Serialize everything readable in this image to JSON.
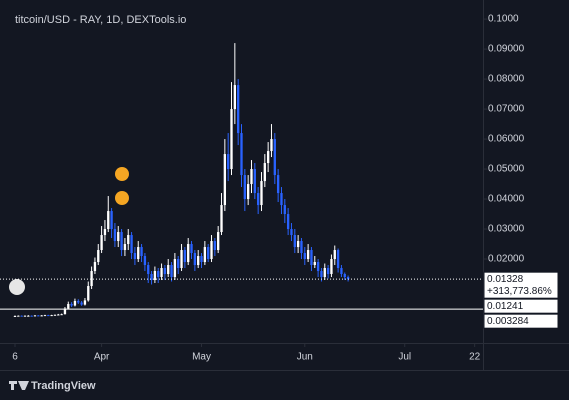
{
  "chart_data": {
    "type": "candlestick",
    "title": "titcoin/USD - RAY, 1D, DEXTools.io",
    "brand": "TradingView",
    "up_color": "#ffffff",
    "down_color": "#2962ff",
    "xlim": [
      -4.5,
      140.5
    ],
    "ylim": [
      -0.008,
      0.1047
    ],
    "xticks": [
      {
        "value": 0,
        "label": "6"
      },
      {
        "value": 26,
        "label": "Apr"
      },
      {
        "value": 56,
        "label": "May"
      },
      {
        "value": 87,
        "label": "Jun"
      },
      {
        "value": 117,
        "label": "Jul"
      },
      {
        "value": 138,
        "label": "22"
      }
    ],
    "yticks": [
      {
        "value": 0.02,
        "label": "0.02000"
      },
      {
        "value": 0.03,
        "label": "0.03000"
      },
      {
        "value": 0.04,
        "label": "0.04000"
      },
      {
        "value": 0.05,
        "label": "0.05000"
      },
      {
        "value": 0.06,
        "label": "0.06000"
      },
      {
        "value": 0.07,
        "label": "0.07000"
      },
      {
        "value": 0.08,
        "label": "0.08000"
      },
      {
        "value": 0.09,
        "label": "0.09000"
      },
      {
        "value": 0.1,
        "label": "0.1000"
      }
    ],
    "x": [
      0,
      1,
      2,
      3,
      4,
      5,
      6,
      7,
      8,
      9,
      10,
      11,
      12,
      13,
      14,
      15,
      16,
      17,
      18,
      19,
      20,
      21,
      22,
      23,
      24,
      25,
      26,
      27,
      28,
      29,
      30,
      31,
      32,
      33,
      34,
      35,
      36,
      37,
      38,
      39,
      40,
      41,
      42,
      43,
      44,
      45,
      46,
      47,
      48,
      49,
      50,
      51,
      52,
      53,
      54,
      55,
      56,
      57,
      58,
      59,
      60,
      61,
      62,
      63,
      64,
      65,
      66,
      67,
      68,
      69,
      70,
      71,
      72,
      73,
      74,
      75,
      76,
      77,
      78,
      79,
      80,
      81,
      82,
      83,
      84,
      85,
      86,
      87,
      88,
      89,
      90,
      91,
      92,
      93,
      94,
      95,
      96,
      97,
      98,
      99,
      100
    ],
    "open": [
      0.001,
      0.001,
      0.0011,
      0.001,
      0.0011,
      0.0011,
      0.001,
      0.0012,
      0.0011,
      0.0012,
      0.0013,
      0.0012,
      0.0013,
      0.0014,
      0.0015,
      0.0016,
      0.0035,
      0.005,
      0.0045,
      0.006,
      0.0055,
      0.0048,
      0.0062,
      0.011,
      0.016,
      0.019,
      0.023,
      0.028,
      0.03,
      0.036,
      0.03,
      0.026,
      0.029,
      0.023,
      0.025,
      0.028,
      0.022,
      0.02,
      0.024,
      0.021,
      0.018,
      0.015,
      0.013,
      0.016,
      0.014,
      0.017,
      0.015,
      0.018,
      0.014,
      0.02,
      0.017,
      0.023,
      0.019,
      0.025,
      0.022,
      0.018,
      0.021,
      0.019,
      0.024,
      0.02,
      0.026,
      0.023,
      0.029,
      0.038,
      0.055,
      0.05,
      0.07,
      0.078,
      0.062,
      0.048,
      0.04,
      0.045,
      0.05,
      0.042,
      0.038,
      0.046,
      0.052,
      0.056,
      0.06,
      0.048,
      0.042,
      0.038,
      0.035,
      0.03,
      0.028,
      0.024,
      0.026,
      0.022,
      0.02,
      0.023,
      0.018,
      0.019,
      0.016,
      0.014,
      0.017,
      0.015,
      0.02,
      0.023,
      0.017,
      0.015,
      0.014
    ],
    "high": [
      0.0012,
      0.0012,
      0.0012,
      0.0012,
      0.0013,
      0.0012,
      0.0013,
      0.0013,
      0.0013,
      0.0014,
      0.0014,
      0.0014,
      0.0015,
      0.0017,
      0.0018,
      0.004,
      0.0058,
      0.0056,
      0.0068,
      0.0066,
      0.006,
      0.007,
      0.0125,
      0.0175,
      0.0205,
      0.025,
      0.031,
      0.033,
      0.041,
      0.037,
      0.032,
      0.031,
      0.03,
      0.027,
      0.03,
      0.029,
      0.024,
      0.026,
      0.025,
      0.022,
      0.019,
      0.016,
      0.0175,
      0.017,
      0.0185,
      0.018,
      0.02,
      0.019,
      0.022,
      0.021,
      0.025,
      0.024,
      0.027,
      0.026,
      0.023,
      0.023,
      0.022,
      0.026,
      0.025,
      0.028,
      0.027,
      0.031,
      0.042,
      0.06,
      0.062,
      0.079,
      0.092,
      0.08,
      0.065,
      0.05,
      0.048,
      0.053,
      0.052,
      0.044,
      0.049,
      0.055,
      0.059,
      0.065,
      0.062,
      0.05,
      0.044,
      0.04,
      0.037,
      0.032,
      0.03,
      0.028,
      0.027,
      0.024,
      0.025,
      0.024,
      0.021,
      0.02,
      0.017,
      0.0185,
      0.018,
      0.0215,
      0.0245,
      0.0235,
      0.018,
      0.0155,
      0.0145
    ],
    "low": [
      0.0009,
      0.0009,
      0.0009,
      0.0009,
      0.001,
      0.0009,
      0.0009,
      0.001,
      0.001,
      0.0011,
      0.0011,
      0.0011,
      0.0012,
      0.0013,
      0.0014,
      0.0015,
      0.0032,
      0.004,
      0.0042,
      0.005,
      0.0044,
      0.0045,
      0.0058,
      0.01,
      0.015,
      0.018,
      0.022,
      0.026,
      0.029,
      0.027,
      0.024,
      0.024,
      0.021,
      0.021,
      0.023,
      0.02,
      0.018,
      0.019,
      0.019,
      0.016,
      0.012,
      0.0115,
      0.012,
      0.012,
      0.013,
      0.013,
      0.014,
      0.0125,
      0.013,
      0.015,
      0.016,
      0.017,
      0.018,
      0.02,
      0.016,
      0.017,
      0.017,
      0.018,
      0.019,
      0.019,
      0.021,
      0.022,
      0.028,
      0.036,
      0.046,
      0.048,
      0.065,
      0.058,
      0.044,
      0.036,
      0.038,
      0.042,
      0.04,
      0.035,
      0.036,
      0.044,
      0.049,
      0.054,
      0.045,
      0.039,
      0.035,
      0.032,
      0.028,
      0.026,
      0.022,
      0.022,
      0.02,
      0.018,
      0.019,
      0.016,
      0.017,
      0.014,
      0.0125,
      0.013,
      0.0135,
      0.014,
      0.018,
      0.0155,
      0.014,
      0.013,
      0.0125
    ],
    "close": [
      0.001,
      0.0011,
      0.001,
      0.0011,
      0.0011,
      0.001,
      0.0012,
      0.0011,
      0.0012,
      0.0013,
      0.0012,
      0.0013,
      0.0014,
      0.0015,
      0.0016,
      0.0035,
      0.005,
      0.0045,
      0.006,
      0.0055,
      0.0048,
      0.0062,
      0.011,
      0.016,
      0.019,
      0.023,
      0.028,
      0.03,
      0.036,
      0.03,
      0.026,
      0.029,
      0.023,
      0.025,
      0.028,
      0.022,
      0.02,
      0.024,
      0.021,
      0.018,
      0.015,
      0.013,
      0.016,
      0.014,
      0.017,
      0.015,
      0.018,
      0.014,
      0.02,
      0.017,
      0.023,
      0.019,
      0.025,
      0.022,
      0.018,
      0.021,
      0.019,
      0.024,
      0.02,
      0.026,
      0.023,
      0.029,
      0.038,
      0.055,
      0.05,
      0.07,
      0.078,
      0.062,
      0.048,
      0.04,
      0.045,
      0.05,
      0.042,
      0.038,
      0.046,
      0.052,
      0.056,
      0.06,
      0.048,
      0.042,
      0.038,
      0.035,
      0.03,
      0.028,
      0.024,
      0.026,
      0.022,
      0.02,
      0.023,
      0.018,
      0.019,
      0.016,
      0.014,
      0.017,
      0.015,
      0.02,
      0.023,
      0.017,
      0.015,
      0.014,
      0.0133
    ],
    "price_tags": [
      {
        "value": 0.01328,
        "label": "0.01328",
        "change": "+313,773.86%",
        "line": "dotted"
      },
      {
        "value": 0.01241,
        "label": "0.01241"
      },
      {
        "value": 0.003284,
        "label": "0.003284",
        "line": "solid"
      }
    ]
  }
}
